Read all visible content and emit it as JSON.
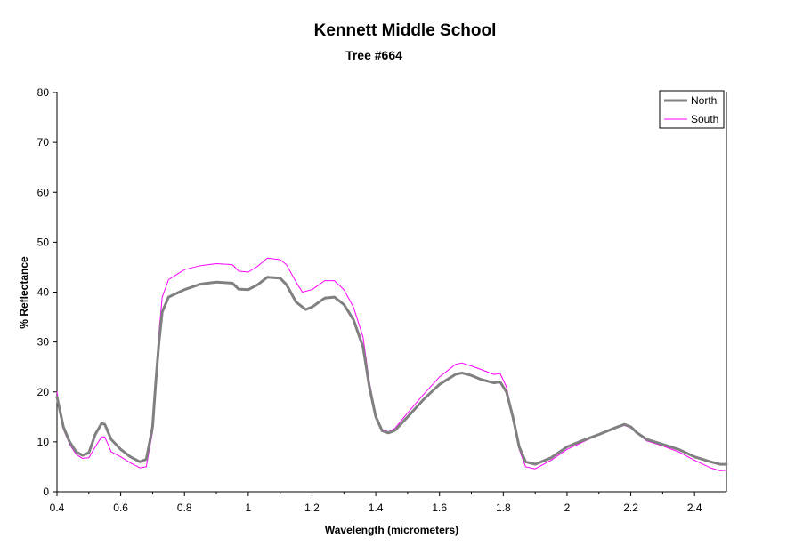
{
  "chart_data": {
    "type": "line",
    "title": "Kennett Middle School",
    "subtitle": "Tree #664",
    "xlabel": "Wavelength (micrometers)",
    "ylabel": "% Reflectance",
    "xlim": [
      0.4,
      2.5
    ],
    "ylim": [
      0,
      80
    ],
    "x_ticks": [
      "0.4",
      "0.6",
      "0.8",
      "1",
      "1.2",
      "1.4",
      "1.6",
      "1.8",
      "2",
      "2.2",
      "2.4"
    ],
    "y_ticks": [
      "0",
      "10",
      "20",
      "30",
      "40",
      "50",
      "60",
      "70",
      "80"
    ],
    "grid": false,
    "legend": "top-right",
    "series": [
      {
        "name": "North",
        "color": "#808080",
        "points": [
          [
            0.4,
            19
          ],
          [
            0.42,
            13
          ],
          [
            0.44,
            10
          ],
          [
            0.46,
            8
          ],
          [
            0.48,
            7.3
          ],
          [
            0.5,
            7.8
          ],
          [
            0.52,
            11.5
          ],
          [
            0.54,
            13.7
          ],
          [
            0.55,
            13.5
          ],
          [
            0.57,
            10.5
          ],
          [
            0.6,
            8.5
          ],
          [
            0.63,
            7
          ],
          [
            0.66,
            6
          ],
          [
            0.68,
            6.5
          ],
          [
            0.7,
            13
          ],
          [
            0.71,
            22
          ],
          [
            0.72,
            30
          ],
          [
            0.73,
            36
          ],
          [
            0.75,
            39
          ],
          [
            0.8,
            40.5
          ],
          [
            0.85,
            41.6
          ],
          [
            0.9,
            42
          ],
          [
            0.95,
            41.8
          ],
          [
            0.97,
            40.6
          ],
          [
            1.0,
            40.5
          ],
          [
            1.03,
            41.5
          ],
          [
            1.06,
            43
          ],
          [
            1.1,
            42.8
          ],
          [
            1.12,
            41.5
          ],
          [
            1.15,
            38
          ],
          [
            1.18,
            36.5
          ],
          [
            1.2,
            37
          ],
          [
            1.24,
            38.8
          ],
          [
            1.27,
            39
          ],
          [
            1.3,
            37.5
          ],
          [
            1.33,
            34.5
          ],
          [
            1.36,
            29
          ],
          [
            1.38,
            21
          ],
          [
            1.4,
            15
          ],
          [
            1.42,
            12.2
          ],
          [
            1.44,
            11.8
          ],
          [
            1.46,
            12.3
          ],
          [
            1.5,
            15
          ],
          [
            1.55,
            18.5
          ],
          [
            1.6,
            21.5
          ],
          [
            1.65,
            23.5
          ],
          [
            1.67,
            23.8
          ],
          [
            1.7,
            23.3
          ],
          [
            1.73,
            22.5
          ],
          [
            1.77,
            21.8
          ],
          [
            1.79,
            22
          ],
          [
            1.81,
            20
          ],
          [
            1.83,
            15
          ],
          [
            1.85,
            9
          ],
          [
            1.87,
            6
          ],
          [
            1.9,
            5.5
          ],
          [
            1.95,
            6.8
          ],
          [
            2.0,
            9
          ],
          [
            2.05,
            10.3
          ],
          [
            2.1,
            11.5
          ],
          [
            2.15,
            12.8
          ],
          [
            2.18,
            13.5
          ],
          [
            2.2,
            13
          ],
          [
            2.22,
            11.8
          ],
          [
            2.25,
            10.5
          ],
          [
            2.3,
            9.5
          ],
          [
            2.35,
            8.5
          ],
          [
            2.4,
            7
          ],
          [
            2.45,
            6
          ],
          [
            2.48,
            5.5
          ],
          [
            2.5,
            5.5
          ]
        ]
      },
      {
        "name": "South",
        "color": "#ff00ff",
        "points": [
          [
            0.4,
            20
          ],
          [
            0.42,
            12.5
          ],
          [
            0.44,
            9.5
          ],
          [
            0.46,
            7.5
          ],
          [
            0.48,
            6.7
          ],
          [
            0.5,
            6.8
          ],
          [
            0.52,
            9
          ],
          [
            0.54,
            11
          ],
          [
            0.55,
            11
          ],
          [
            0.57,
            8
          ],
          [
            0.6,
            7
          ],
          [
            0.63,
            5.8
          ],
          [
            0.66,
            4.8
          ],
          [
            0.68,
            5
          ],
          [
            0.7,
            12
          ],
          [
            0.71,
            23
          ],
          [
            0.72,
            32
          ],
          [
            0.73,
            39
          ],
          [
            0.75,
            42.5
          ],
          [
            0.8,
            44.5
          ],
          [
            0.85,
            45.3
          ],
          [
            0.9,
            45.7
          ],
          [
            0.95,
            45.5
          ],
          [
            0.97,
            44.2
          ],
          [
            1.0,
            44
          ],
          [
            1.03,
            45.2
          ],
          [
            1.06,
            46.8
          ],
          [
            1.1,
            46.5
          ],
          [
            1.12,
            45.5
          ],
          [
            1.15,
            42
          ],
          [
            1.17,
            40
          ],
          [
            1.2,
            40.5
          ],
          [
            1.24,
            42.3
          ],
          [
            1.27,
            42.3
          ],
          [
            1.3,
            40.5
          ],
          [
            1.33,
            37
          ],
          [
            1.36,
            31
          ],
          [
            1.38,
            22
          ],
          [
            1.4,
            15.5
          ],
          [
            1.42,
            12.5
          ],
          [
            1.44,
            12
          ],
          [
            1.46,
            12.7
          ],
          [
            1.5,
            15.8
          ],
          [
            1.55,
            19.5
          ],
          [
            1.6,
            23
          ],
          [
            1.65,
            25.5
          ],
          [
            1.67,
            25.8
          ],
          [
            1.7,
            25.2
          ],
          [
            1.73,
            24.5
          ],
          [
            1.77,
            23.5
          ],
          [
            1.79,
            23.7
          ],
          [
            1.81,
            21
          ],
          [
            1.83,
            15
          ],
          [
            1.85,
            8.5
          ],
          [
            1.87,
            5
          ],
          [
            1.9,
            4.6
          ],
          [
            1.95,
            6.3
          ],
          [
            2.0,
            8.5
          ],
          [
            2.05,
            10
          ],
          [
            2.1,
            11.5
          ],
          [
            2.15,
            12.7
          ],
          [
            2.18,
            13.3
          ],
          [
            2.2,
            12.8
          ],
          [
            2.22,
            11.7
          ],
          [
            2.25,
            10.2
          ],
          [
            2.3,
            9.2
          ],
          [
            2.35,
            8
          ],
          [
            2.4,
            6.3
          ],
          [
            2.45,
            4.8
          ],
          [
            2.48,
            4.2
          ],
          [
            2.5,
            4.3
          ]
        ]
      }
    ]
  }
}
